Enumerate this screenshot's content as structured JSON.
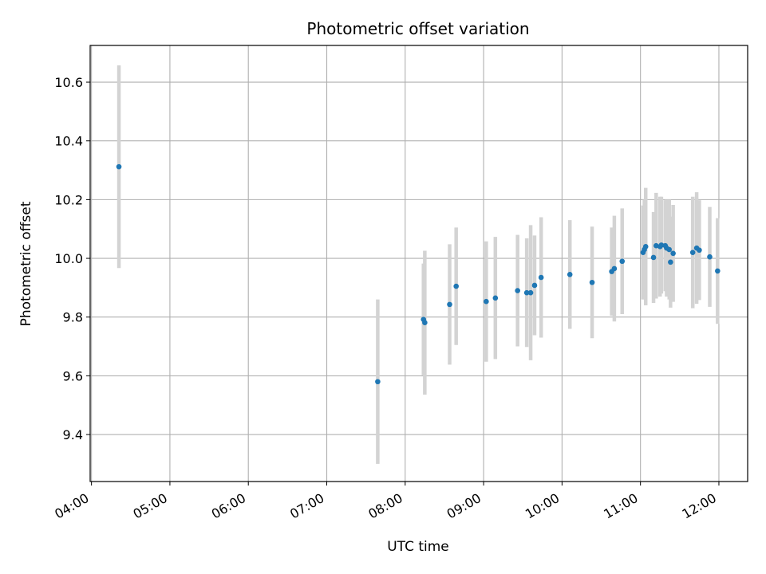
{
  "chart_data": {
    "type": "scatter",
    "title": "Photometric offset variation",
    "xlabel": "UTC time",
    "ylabel": "Photometric offset",
    "x_ticks": [
      "04:00",
      "05:00",
      "06:00",
      "07:00",
      "08:00",
      "09:00",
      "10:00",
      "11:00",
      "12:00"
    ],
    "x_tick_hours": [
      4,
      5,
      6,
      7,
      8,
      9,
      10,
      11,
      12
    ],
    "y_ticks": [
      "9.4",
      "9.6",
      "9.8",
      "10.0",
      "10.2",
      "10.4",
      "10.6"
    ],
    "y_tick_values": [
      9.4,
      9.6,
      9.8,
      10.0,
      10.2,
      10.4,
      10.6
    ],
    "xlim": [
      "03:59",
      "12:22"
    ],
    "ylim": [
      9.24,
      10.725
    ],
    "grid": true,
    "colors": {
      "marker": "#1f77b4",
      "errorbar": "#d3d3d3",
      "grid": "#b0b0b0"
    },
    "points": [
      {
        "x": "04:21",
        "y": 10.312,
        "err": 0.345
      },
      {
        "x": "07:39",
        "y": 9.58,
        "err": 0.28
      },
      {
        "x": "08:14",
        "y": 9.792,
        "err": 0.19
      },
      {
        "x": "08:15",
        "y": 9.781,
        "err": 0.245
      },
      {
        "x": "08:34",
        "y": 9.843,
        "err": 0.205
      },
      {
        "x": "08:39",
        "y": 9.905,
        "err": 0.2
      },
      {
        "x": "09:02",
        "y": 9.853,
        "err": 0.205
      },
      {
        "x": "09:09",
        "y": 9.865,
        "err": 0.208
      },
      {
        "x": "09:26",
        "y": 9.89,
        "err": 0.19
      },
      {
        "x": "09:33",
        "y": 9.883,
        "err": 0.185
      },
      {
        "x": "09:36",
        "y": 9.883,
        "err": 0.23
      },
      {
        "x": "09:39",
        "y": 9.908,
        "err": 0.17
      },
      {
        "x": "09:44",
        "y": 9.935,
        "err": 0.205
      },
      {
        "x": "10:06",
        "y": 9.945,
        "err": 0.185
      },
      {
        "x": "10:23",
        "y": 9.918,
        "err": 0.19
      },
      {
        "x": "10:38",
        "y": 9.955,
        "err": 0.15
      },
      {
        "x": "10:40",
        "y": 9.965,
        "err": 0.18
      },
      {
        "x": "10:46",
        "y": 9.99,
        "err": 0.18
      },
      {
        "x": "11:02",
        "y": 10.02,
        "err": 0.16
      },
      {
        "x": "11:03",
        "y": 10.03,
        "err": 0.17
      },
      {
        "x": "11:04",
        "y": 10.04,
        "err": 0.2
      },
      {
        "x": "11:10",
        "y": 10.003,
        "err": 0.155
      },
      {
        "x": "11:12",
        "y": 10.043,
        "err": 0.18
      },
      {
        "x": "11:15",
        "y": 10.04,
        "err": 0.17
      },
      {
        "x": "11:16",
        "y": 10.045,
        "err": 0.165
      },
      {
        "x": "11:19",
        "y": 10.043,
        "err": 0.155
      },
      {
        "x": "11:20",
        "y": 10.035,
        "err": 0.165
      },
      {
        "x": "11:22",
        "y": 10.03,
        "err": 0.17
      },
      {
        "x": "11:23",
        "y": 9.987,
        "err": 0.155
      },
      {
        "x": "11:25",
        "y": 10.017,
        "err": 0.165
      },
      {
        "x": "11:40",
        "y": 10.02,
        "err": 0.19
      },
      {
        "x": "11:43",
        "y": 10.035,
        "err": 0.19
      },
      {
        "x": "11:45",
        "y": 10.028,
        "err": 0.17
      },
      {
        "x": "11:53",
        "y": 10.005,
        "err": 0.17
      },
      {
        "x": "11:59",
        "y": 9.957,
        "err": 0.18
      }
    ]
  }
}
